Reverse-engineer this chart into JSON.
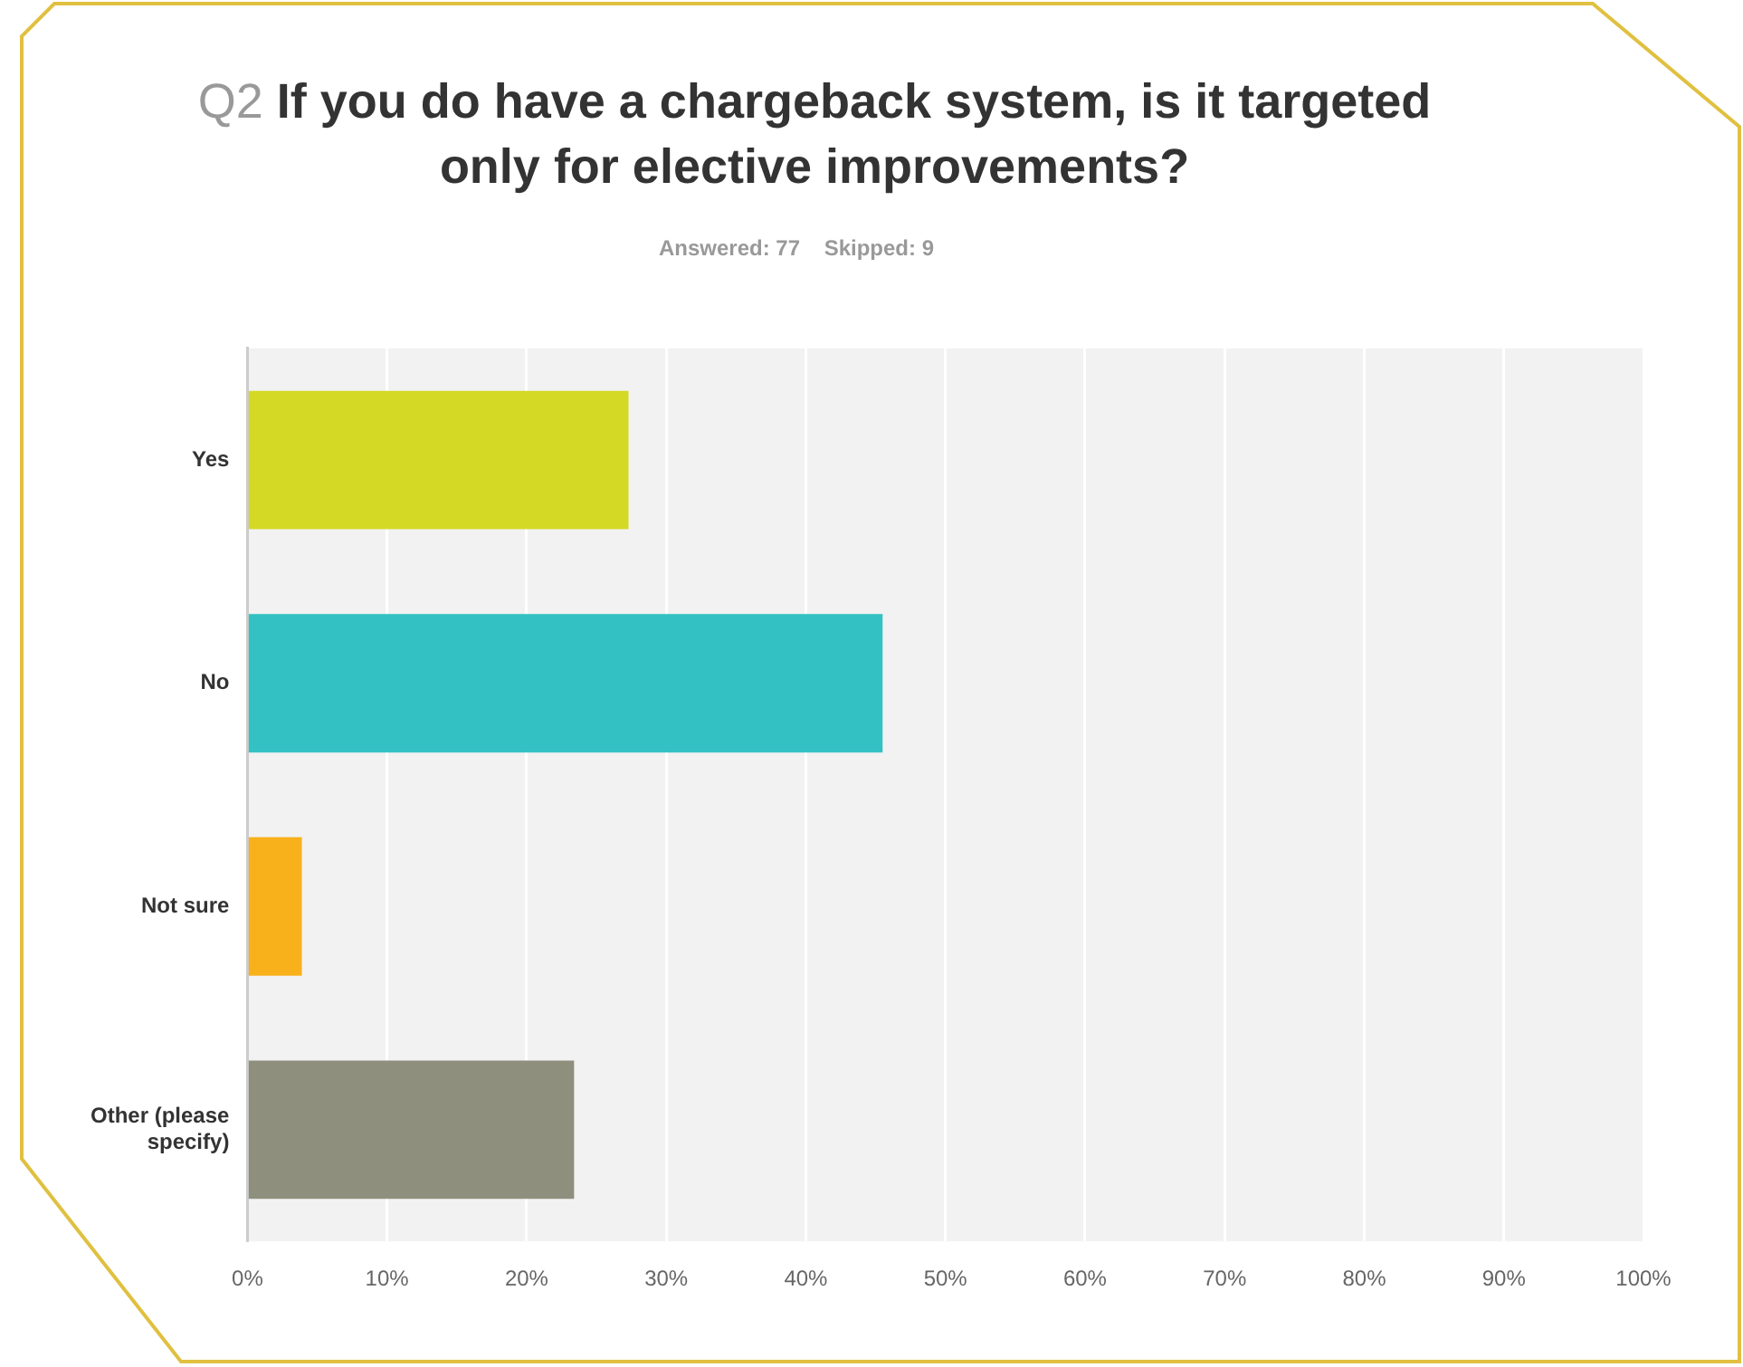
{
  "chart_data": {
    "type": "bar",
    "orientation": "horizontal",
    "title": "Q2 If you do have a chargeback system, is it targeted only for elective improvements?",
    "subtitle": "Answered: 77    Skipped: 9",
    "categories": [
      "Yes",
      "No",
      "Not sure",
      "Other (please specify)"
    ],
    "values": [
      27.3,
      45.5,
      3.9,
      23.4
    ],
    "colors": [
      "#d4d925",
      "#33c1c3",
      "#f8b01b",
      "#8f8f7e"
    ],
    "xlim": [
      0,
      100
    ],
    "xticks": [
      {
        "value": 0,
        "label": "0%"
      },
      {
        "value": 10,
        "label": "10%"
      },
      {
        "value": 20,
        "label": "20%"
      },
      {
        "value": 30,
        "label": "30%"
      },
      {
        "value": 40,
        "label": "40%"
      },
      {
        "value": 50,
        "label": "50%"
      },
      {
        "value": 60,
        "label": "60%"
      },
      {
        "value": 70,
        "label": "70%"
      },
      {
        "value": 80,
        "label": "80%"
      },
      {
        "value": 90,
        "label": "90%"
      },
      {
        "value": 100,
        "label": "100%"
      }
    ],
    "grid": "x"
  }
}
